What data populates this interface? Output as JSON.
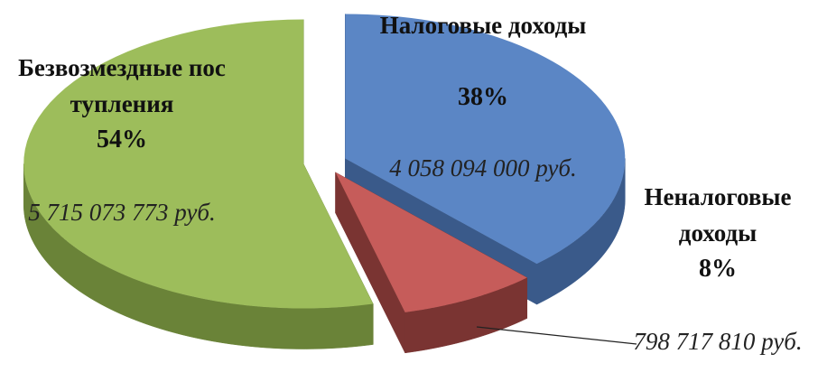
{
  "chart_data": {
    "type": "pie",
    "categories": [
      "Налоговые доходы",
      "Неналоговые доходы",
      "Безвозмездные поступления"
    ],
    "values": [
      38,
      8,
      54
    ],
    "value_labels": [
      "38%",
      "8%",
      "54%"
    ],
    "amount_labels": [
      "4 058 094 000 руб.",
      "798 717 810 руб.",
      "5 715 073 773 руб."
    ],
    "colors": [
      "#5b86c5",
      "#c65c5a",
      "#9dbd5b"
    ],
    "side_colors": [
      "#3a5a8a",
      "#7a3432",
      "#6a8338"
    ]
  }
}
